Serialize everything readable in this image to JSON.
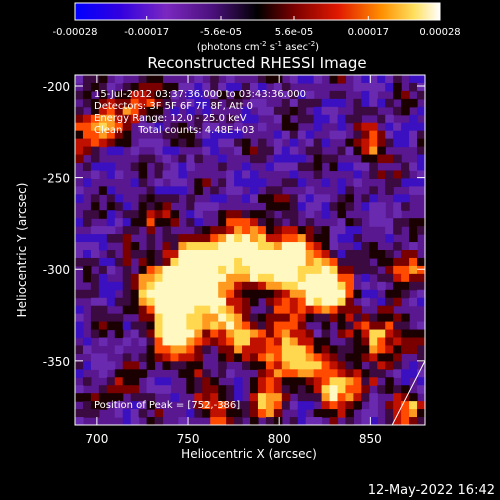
{
  "colorbar": {
    "tick_labels": [
      "-0.00028",
      "-0.00017",
      "-5.6e-05",
      "5.6e-05",
      "0.00017",
      "0.00028"
    ],
    "tick_values": [
      -0.00028,
      -0.00017,
      -5.6e-05,
      5.6e-05,
      0.00017,
      0.00028
    ],
    "range": [
      -0.00028,
      0.00028
    ],
    "units_base": "(photons cm",
    "units_exp1": "-2",
    "units_mid": " s",
    "units_exp2": "-1",
    "units_mid2": " asec",
    "units_exp3": "-2",
    "units_end": ")",
    "colors": [
      "#0000ff",
      "#5a00c8",
      "#8c2ab4",
      "#5a1696",
      "#3a0a50",
      "#000000",
      "#6a0000",
      "#d01000",
      "#ff6000",
      "#ffc030",
      "#ffff80",
      "#ffffff"
    ]
  },
  "chart_data": {
    "type": "heatmap",
    "title": "Reconstructed RHESSI Image",
    "xlabel": "Heliocentric X (arcsec)",
    "ylabel": "Heliocentric Y (arcsec)",
    "xlim": [
      688,
      880
    ],
    "ylim": [
      -385,
      -194
    ],
    "x_ticks": [
      700,
      750,
      800,
      850
    ],
    "x_tick_labels": [
      "700",
      "750",
      "800",
      "850"
    ],
    "y_ticks": [
      -200,
      -250,
      -300,
      -350
    ],
    "y_tick_labels": [
      "-200",
      "-250",
      "-300",
      "-350"
    ],
    "peak_position": [
      752,
      -386
    ],
    "limb_line": [
      [
        862,
        -385
      ],
      [
        880,
        -350
      ]
    ]
  },
  "annotations": {
    "line1": "15-Jul-2012 03:37:36.000 to 03:43:36.000",
    "line2": "Detectors: 3F 5F 6F 7F 8F, Att 0",
    "line3": "Energy Range: 12.0 - 25.0 keV",
    "line4": "Clean     Total counts: 4.48E+03",
    "peak": "Position of Peak = [752,-386]"
  },
  "footer": {
    "timestamp": "12-May-2022 16:42"
  }
}
